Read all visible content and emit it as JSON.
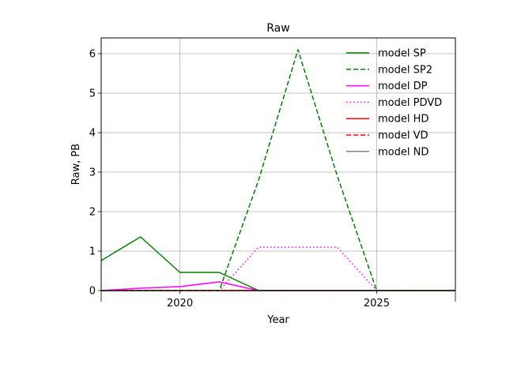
{
  "chart_data": {
    "type": "line",
    "title": "Raw",
    "xlabel": "Year",
    "ylabel": "Raw, PB",
    "xlim": [
      2018,
      2027
    ],
    "ylim": [
      0,
      6.4
    ],
    "x_ticks": [
      2020,
      2025
    ],
    "y_ticks": [
      0,
      1,
      2,
      3,
      4,
      5,
      6
    ],
    "grid": true,
    "legend_position": "top-right",
    "x": [
      2018,
      2019,
      2020,
      2021,
      2022,
      2023,
      2024,
      2025,
      2026,
      2027
    ],
    "series": [
      {
        "name": "model SP",
        "color": "#008000",
        "dash": "solid",
        "values": [
          0.76,
          1.36,
          0.46,
          0.46,
          0.0,
          0.0,
          0.0,
          0.0,
          0.0,
          0.0
        ]
      },
      {
        "name": "model SP2",
        "color": "#008000",
        "dash": "dashed",
        "values": [
          0.0,
          0.0,
          0.0,
          0.0,
          2.8,
          6.1,
          2.9,
          0.0,
          0.0,
          0.0
        ]
      },
      {
        "name": "model DP",
        "color": "#ff00ff",
        "dash": "solid",
        "values": [
          0.0,
          0.06,
          0.1,
          0.22,
          0.0,
          0.0,
          0.0,
          0.0,
          0.0,
          0.0
        ]
      },
      {
        "name": "model PDVD",
        "color": "#ff00ff",
        "dash": "dotted",
        "values": [
          0.0,
          0.0,
          0.0,
          0.0,
          1.1,
          1.1,
          1.1,
          0.0,
          0.0,
          0.0
        ]
      },
      {
        "name": "model HD",
        "color": "#ff0000",
        "dash": "solid",
        "values": [
          0.0,
          0.0,
          0.0,
          0.0,
          0.0,
          0.0,
          0.0,
          0.0,
          0.0,
          0.0
        ]
      },
      {
        "name": "model VD",
        "color": "#ff0000",
        "dash": "dashed",
        "values": [
          0.0,
          0.0,
          0.0,
          0.0,
          0.0,
          0.0,
          0.0,
          0.0,
          0.0,
          0.0
        ]
      },
      {
        "name": "model ND",
        "color": "#808080",
        "dash": "solid",
        "values": [
          0.0,
          0.0,
          0.0,
          0.0,
          0.0,
          0.0,
          0.0,
          0.0,
          0.0,
          0.0
        ]
      }
    ]
  }
}
